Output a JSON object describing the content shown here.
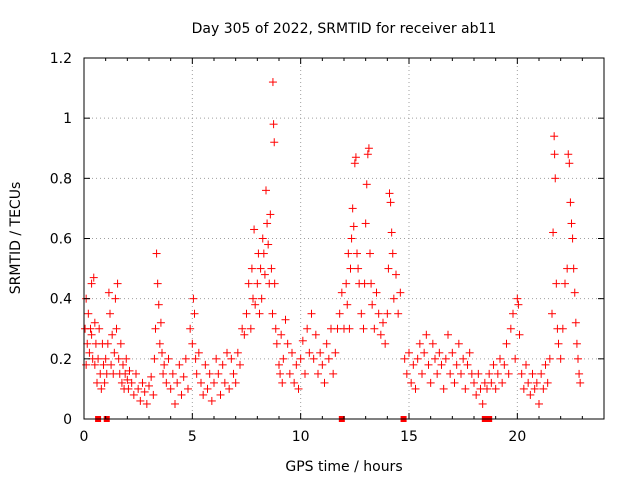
{
  "chart_data": {
    "type": "scatter",
    "title": "Day 305 of 2022, SRMTID for receiver ab11",
    "xlabel": "GPS time / hours",
    "ylabel": "SRMTID / TECUs",
    "xlim": [
      0,
      24
    ],
    "ylim": [
      0,
      1.2
    ],
    "grid": true,
    "marker": "+",
    "color": "#ff0000",
    "xticks": [
      0,
      5,
      10,
      15,
      20
    ],
    "xtick_labels": [
      "0",
      "5",
      "10",
      "15",
      "20"
    ],
    "yticks": [
      0,
      0.2,
      0.4,
      0.6,
      0.8,
      1.0,
      1.2
    ],
    "ytick_labels": [
      "0",
      "0.2",
      "0.4",
      "0.6",
      "0.8",
      "1",
      "1.2"
    ],
    "baseline_markers_x": [
      0.65,
      1.05,
      11.9,
      14.75,
      18.5,
      18.7
    ],
    "series": [
      {
        "name": "SRMTID",
        "points": [
          [
            0.05,
            0.3
          ],
          [
            0.1,
            0.4
          ],
          [
            0.1,
            0.18
          ],
          [
            0.15,
            0.25
          ],
          [
            0.2,
            0.35
          ],
          [
            0.25,
            0.22
          ],
          [
            0.3,
            0.3
          ],
          [
            0.35,
            0.45
          ],
          [
            0.35,
            0.28
          ],
          [
            0.4,
            0.2
          ],
          [
            0.45,
            0.47
          ],
          [
            0.5,
            0.32
          ],
          [
            0.5,
            0.18
          ],
          [
            0.55,
            0.25
          ],
          [
            0.6,
            0.12
          ],
          [
            0.65,
            0.2
          ],
          [
            0.7,
            0.3
          ],
          [
            0.75,
            0.15
          ],
          [
            0.8,
            0.1
          ],
          [
            0.85,
            0.25
          ],
          [
            0.9,
            0.18
          ],
          [
            0.95,
            0.12
          ],
          [
            1.0,
            0.2
          ],
          [
            1.05,
            0.15
          ],
          [
            1.1,
            0.25
          ],
          [
            1.15,
            0.42
          ],
          [
            1.2,
            0.35
          ],
          [
            1.25,
            0.18
          ],
          [
            1.3,
            0.28
          ],
          [
            1.35,
            0.15
          ],
          [
            1.4,
            0.22
          ],
          [
            1.45,
            0.4
          ],
          [
            1.5,
            0.3
          ],
          [
            1.55,
            0.45
          ],
          [
            1.6,
            0.2
          ],
          [
            1.65,
            0.15
          ],
          [
            1.7,
            0.25
          ],
          [
            1.75,
            0.12
          ],
          [
            1.8,
            0.18
          ],
          [
            1.85,
            0.1
          ],
          [
            1.9,
            0.15
          ],
          [
            1.95,
            0.2
          ],
          [
            2.0,
            0.13
          ],
          [
            2.05,
            0.1
          ],
          [
            2.1,
            0.16
          ],
          [
            2.2,
            0.12
          ],
          [
            2.3,
            0.08
          ],
          [
            2.4,
            0.15
          ],
          [
            2.5,
            0.1
          ],
          [
            2.6,
            0.06
          ],
          [
            2.7,
            0.12
          ],
          [
            2.8,
            0.09
          ],
          [
            2.9,
            0.05
          ],
          [
            3.0,
            0.11
          ],
          [
            3.1,
            0.14
          ],
          [
            3.2,
            0.08
          ],
          [
            3.25,
            0.2
          ],
          [
            3.3,
            0.3
          ],
          [
            3.35,
            0.55
          ],
          [
            3.4,
            0.45
          ],
          [
            3.45,
            0.38
          ],
          [
            3.5,
            0.25
          ],
          [
            3.55,
            0.32
          ],
          [
            3.6,
            0.22
          ],
          [
            3.65,
            0.15
          ],
          [
            3.7,
            0.18
          ],
          [
            3.8,
            0.12
          ],
          [
            3.9,
            0.2
          ],
          [
            4.0,
            0.1
          ],
          [
            4.1,
            0.15
          ],
          [
            4.2,
            0.05
          ],
          [
            4.3,
            0.12
          ],
          [
            4.4,
            0.18
          ],
          [
            4.5,
            0.08
          ],
          [
            4.6,
            0.14
          ],
          [
            4.7,
            0.2
          ],
          [
            4.8,
            0.1
          ],
          [
            4.9,
            0.3
          ],
          [
            5.0,
            0.25
          ],
          [
            5.05,
            0.4
          ],
          [
            5.1,
            0.35
          ],
          [
            5.15,
            0.2
          ],
          [
            5.2,
            0.15
          ],
          [
            5.3,
            0.22
          ],
          [
            5.4,
            0.12
          ],
          [
            5.5,
            0.08
          ],
          [
            5.6,
            0.18
          ],
          [
            5.7,
            0.1
          ],
          [
            5.8,
            0.15
          ],
          [
            5.9,
            0.06
          ],
          [
            6.0,
            0.12
          ],
          [
            6.1,
            0.2
          ],
          [
            6.2,
            0.15
          ],
          [
            6.3,
            0.08
          ],
          [
            6.4,
            0.18
          ],
          [
            6.5,
            0.12
          ],
          [
            6.6,
            0.22
          ],
          [
            6.7,
            0.1
          ],
          [
            6.8,
            0.2
          ],
          [
            6.9,
            0.15
          ],
          [
            7.0,
            0.12
          ],
          [
            7.1,
            0.22
          ],
          [
            7.2,
            0.18
          ],
          [
            7.3,
            0.3
          ],
          [
            7.4,
            0.28
          ],
          [
            7.5,
            0.35
          ],
          [
            7.6,
            0.45
          ],
          [
            7.7,
            0.3
          ],
          [
            7.75,
            0.5
          ],
          [
            7.8,
            0.4
          ],
          [
            7.85,
            0.63
          ],
          [
            7.9,
            0.38
          ],
          [
            8.0,
            0.45
          ],
          [
            8.05,
            0.55
          ],
          [
            8.1,
            0.35
          ],
          [
            8.15,
            0.5
          ],
          [
            8.2,
            0.4
          ],
          [
            8.25,
            0.6
          ],
          [
            8.3,
            0.55
          ],
          [
            8.35,
            0.48
          ],
          [
            8.4,
            0.76
          ],
          [
            8.45,
            0.65
          ],
          [
            8.5,
            0.58
          ],
          [
            8.55,
            0.45
          ],
          [
            8.6,
            0.68
          ],
          [
            8.65,
            0.5
          ],
          [
            8.7,
            0.35
          ],
          [
            8.72,
            1.12
          ],
          [
            8.75,
            0.98
          ],
          [
            8.78,
            0.92
          ],
          [
            8.8,
            0.45
          ],
          [
            8.85,
            0.3
          ],
          [
            8.9,
            0.25
          ],
          [
            9.0,
            0.18
          ],
          [
            9.05,
            0.15
          ],
          [
            9.1,
            0.28
          ],
          [
            9.15,
            0.12
          ],
          [
            9.2,
            0.2
          ],
          [
            9.3,
            0.33
          ],
          [
            9.4,
            0.25
          ],
          [
            9.5,
            0.15
          ],
          [
            9.6,
            0.22
          ],
          [
            9.7,
            0.12
          ],
          [
            9.8,
            0.18
          ],
          [
            9.9,
            0.1
          ],
          [
            10.0,
            0.2
          ],
          [
            10.1,
            0.26
          ],
          [
            10.2,
            0.15
          ],
          [
            10.3,
            0.3
          ],
          [
            10.4,
            0.22
          ],
          [
            10.5,
            0.35
          ],
          [
            10.6,
            0.2
          ],
          [
            10.7,
            0.28
          ],
          [
            10.8,
            0.15
          ],
          [
            10.9,
            0.22
          ],
          [
            11.0,
            0.18
          ],
          [
            11.1,
            0.12
          ],
          [
            11.2,
            0.25
          ],
          [
            11.3,
            0.2
          ],
          [
            11.4,
            0.3
          ],
          [
            11.5,
            0.15
          ],
          [
            11.6,
            0.22
          ],
          [
            11.7,
            0.3
          ],
          [
            11.8,
            0.35
          ],
          [
            11.9,
            0.42
          ],
          [
            12.0,
            0.3
          ],
          [
            12.1,
            0.45
          ],
          [
            12.15,
            0.38
          ],
          [
            12.2,
            0.55
          ],
          [
            12.25,
            0.3
          ],
          [
            12.3,
            0.5
          ],
          [
            12.35,
            0.6
          ],
          [
            12.4,
            0.7
          ],
          [
            12.45,
            0.64
          ],
          [
            12.5,
            0.85
          ],
          [
            12.55,
            0.87
          ],
          [
            12.6,
            0.55
          ],
          [
            12.65,
            0.5
          ],
          [
            12.7,
            0.45
          ],
          [
            12.8,
            0.35
          ],
          [
            12.9,
            0.3
          ],
          [
            12.95,
            0.45
          ],
          [
            13.0,
            0.65
          ],
          [
            13.05,
            0.78
          ],
          [
            13.1,
            0.88
          ],
          [
            13.15,
            0.9
          ],
          [
            13.2,
            0.55
          ],
          [
            13.25,
            0.45
          ],
          [
            13.3,
            0.38
          ],
          [
            13.4,
            0.3
          ],
          [
            13.5,
            0.42
          ],
          [
            13.6,
            0.35
          ],
          [
            13.7,
            0.28
          ],
          [
            13.8,
            0.32
          ],
          [
            13.9,
            0.25
          ],
          [
            14.0,
            0.35
          ],
          [
            14.05,
            0.5
          ],
          [
            14.1,
            0.75
          ],
          [
            14.15,
            0.72
          ],
          [
            14.2,
            0.62
          ],
          [
            14.25,
            0.55
          ],
          [
            14.3,
            0.4
          ],
          [
            14.4,
            0.48
          ],
          [
            14.5,
            0.35
          ],
          [
            14.6,
            0.42
          ],
          [
            14.8,
            0.2
          ],
          [
            14.9,
            0.15
          ],
          [
            15.0,
            0.22
          ],
          [
            15.1,
            0.12
          ],
          [
            15.2,
            0.18
          ],
          [
            15.3,
            0.1
          ],
          [
            15.4,
            0.2
          ],
          [
            15.5,
            0.25
          ],
          [
            15.6,
            0.15
          ],
          [
            15.7,
            0.22
          ],
          [
            15.8,
            0.28
          ],
          [
            15.9,
            0.18
          ],
          [
            16.0,
            0.12
          ],
          [
            16.1,
            0.25
          ],
          [
            16.2,
            0.2
          ],
          [
            16.3,
            0.15
          ],
          [
            16.4,
            0.22
          ],
          [
            16.5,
            0.18
          ],
          [
            16.6,
            0.1
          ],
          [
            16.7,
            0.2
          ],
          [
            16.8,
            0.28
          ],
          [
            16.9,
            0.15
          ],
          [
            17.0,
            0.22
          ],
          [
            17.1,
            0.12
          ],
          [
            17.2,
            0.18
          ],
          [
            17.3,
            0.25
          ],
          [
            17.4,
            0.15
          ],
          [
            17.5,
            0.2
          ],
          [
            17.6,
            0.1
          ],
          [
            17.7,
            0.18
          ],
          [
            17.8,
            0.22
          ],
          [
            17.9,
            0.15
          ],
          [
            18.0,
            0.12
          ],
          [
            18.1,
            0.08
          ],
          [
            18.2,
            0.15
          ],
          [
            18.3,
            0.1
          ],
          [
            18.4,
            0.05
          ],
          [
            18.5,
            0.12
          ],
          [
            18.6,
            0.1
          ],
          [
            18.7,
            0.15
          ],
          [
            18.8,
            0.12
          ],
          [
            18.9,
            0.18
          ],
          [
            19.0,
            0.1
          ],
          [
            19.1,
            0.15
          ],
          [
            19.2,
            0.2
          ],
          [
            19.3,
            0.12
          ],
          [
            19.4,
            0.18
          ],
          [
            19.5,
            0.25
          ],
          [
            19.6,
            0.15
          ],
          [
            19.7,
            0.3
          ],
          [
            19.8,
            0.35
          ],
          [
            19.9,
            0.2
          ],
          [
            20.0,
            0.4
          ],
          [
            20.05,
            0.38
          ],
          [
            20.1,
            0.28
          ],
          [
            20.2,
            0.15
          ],
          [
            20.3,
            0.1
          ],
          [
            20.4,
            0.18
          ],
          [
            20.5,
            0.12
          ],
          [
            20.6,
            0.08
          ],
          [
            20.7,
            0.15
          ],
          [
            20.8,
            0.1
          ],
          [
            20.9,
            0.12
          ],
          [
            21.0,
            0.05
          ],
          [
            21.1,
            0.15
          ],
          [
            21.2,
            0.1
          ],
          [
            21.3,
            0.18
          ],
          [
            21.4,
            0.12
          ],
          [
            21.5,
            0.2
          ],
          [
            21.6,
            0.35
          ],
          [
            21.65,
            0.62
          ],
          [
            21.7,
            0.94
          ],
          [
            21.72,
            0.88
          ],
          [
            21.75,
            0.8
          ],
          [
            21.8,
            0.45
          ],
          [
            21.85,
            0.3
          ],
          [
            21.9,
            0.25
          ],
          [
            22.0,
            0.2
          ],
          [
            22.1,
            0.3
          ],
          [
            22.2,
            0.45
          ],
          [
            22.3,
            0.5
          ],
          [
            22.35,
            0.88
          ],
          [
            22.4,
            0.85
          ],
          [
            22.45,
            0.72
          ],
          [
            22.5,
            0.65
          ],
          [
            22.55,
            0.6
          ],
          [
            22.6,
            0.5
          ],
          [
            22.65,
            0.42
          ],
          [
            22.7,
            0.32
          ],
          [
            22.75,
            0.25
          ],
          [
            22.8,
            0.2
          ],
          [
            22.85,
            0.15
          ],
          [
            22.9,
            0.12
          ]
        ]
      }
    ]
  }
}
